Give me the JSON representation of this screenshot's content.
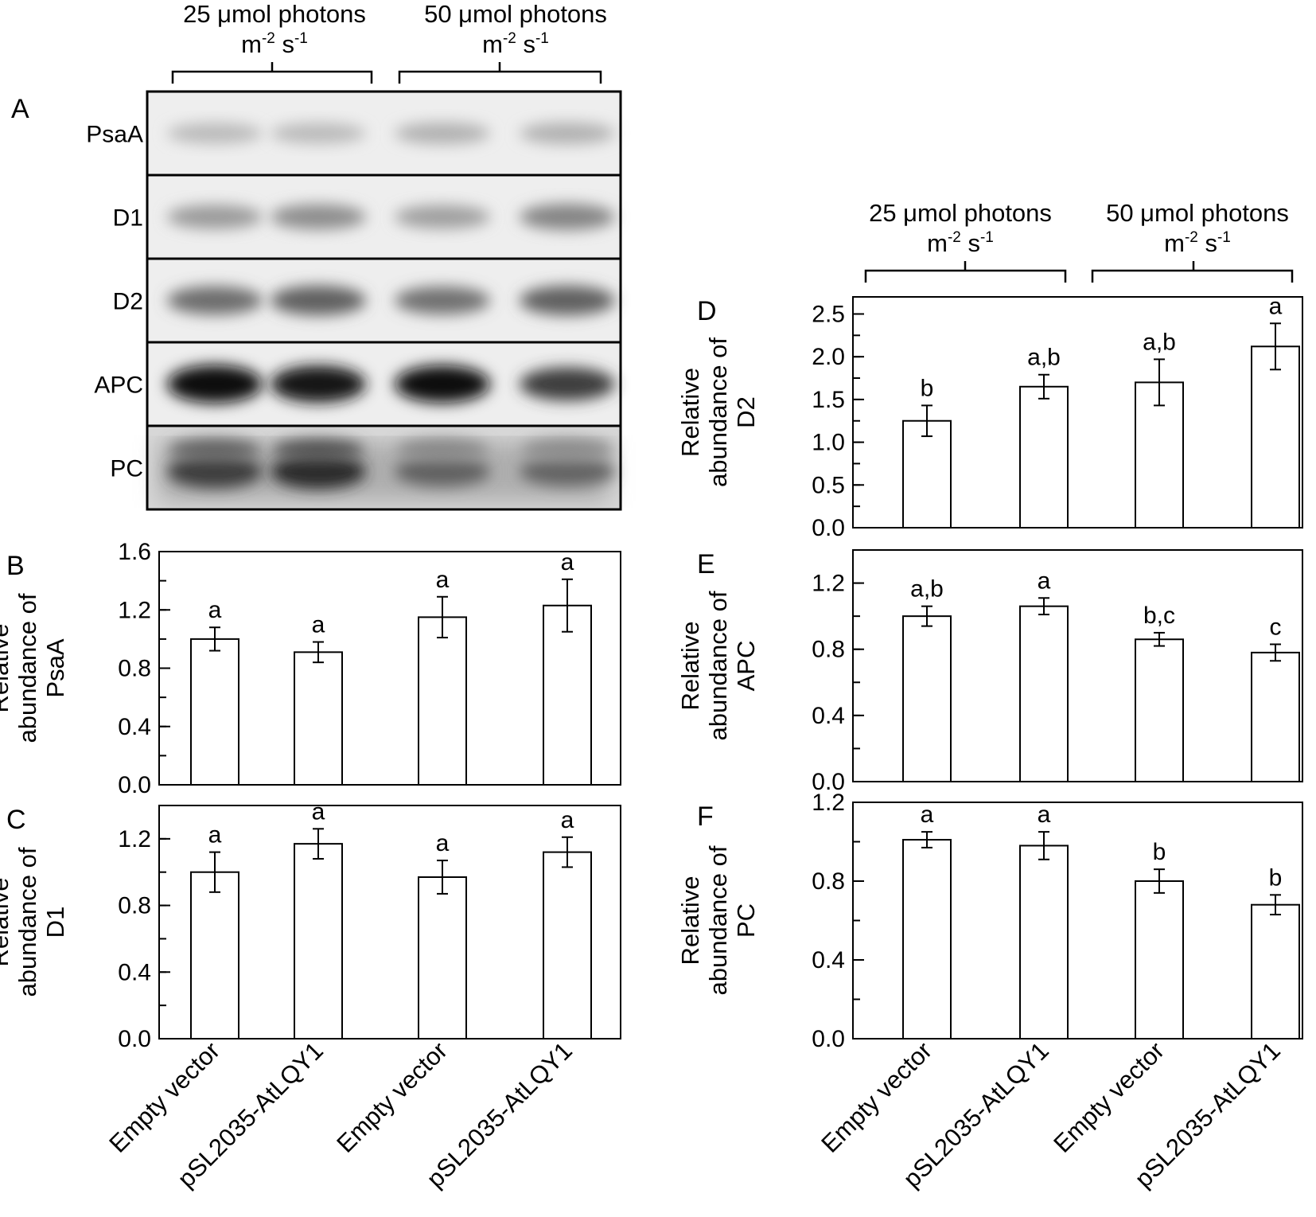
{
  "conditions": {
    "low": {
      "line1": "25 μmol photons",
      "unit_base": "m",
      "unit_exp1": "-2",
      "unit_mid": " s",
      "unit_exp2": "-1"
    },
    "high": {
      "line1": "50 μmol photons",
      "unit_base": "m",
      "unit_exp1": "-2",
      "unit_mid": " s",
      "unit_exp2": "-1"
    }
  },
  "blot": {
    "panel_label": "A",
    "lanes": [
      {
        "label": "PsaA",
        "bands": [
          0.22,
          0.22,
          0.26,
          0.26
        ],
        "split": false
      },
      {
        "label": "D1",
        "bands": [
          0.36,
          0.42,
          0.34,
          0.46
        ],
        "split": false
      },
      {
        "label": "D2",
        "bands": [
          0.56,
          0.62,
          0.54,
          0.62
        ],
        "split": false
      },
      {
        "label": "APC",
        "bands": [
          1.0,
          0.95,
          0.97,
          0.78
        ],
        "split": false
      },
      {
        "label": "PC",
        "bands": [
          0.78,
          0.85,
          0.62,
          0.6
        ],
        "split": true
      }
    ]
  },
  "categories": [
    "Empty vector",
    "pSL2035-AtLQY1",
    "Empty vector",
    "pSL2035-AtLQY1"
  ],
  "ylabel_line1": "Relative",
  "ylabel_line2": "abundance of",
  "chart_data": [
    {
      "panel": "B",
      "type": "bar",
      "protein": "PsaA",
      "categories": [
        "Empty vector",
        "pSL2035-AtLQY1",
        "Empty vector",
        "pSL2035-AtLQY1"
      ],
      "values": [
        1.0,
        0.91,
        1.15,
        1.23
      ],
      "errors": [
        0.08,
        0.07,
        0.14,
        0.18
      ],
      "letters": [
        "a",
        "a",
        "a",
        "a"
      ],
      "ylim": [
        0,
        1.6
      ],
      "ticks": [
        "0.0",
        "0.4",
        "0.8",
        "1.2",
        "1.6"
      ],
      "minor_step": 0.2
    },
    {
      "panel": "C",
      "type": "bar",
      "protein": "D1",
      "categories": [
        "Empty vector",
        "pSL2035-AtLQY1",
        "Empty vector",
        "pSL2035-AtLQY1"
      ],
      "values": [
        1.0,
        1.17,
        0.97,
        1.12
      ],
      "errors": [
        0.12,
        0.09,
        0.1,
        0.09
      ],
      "letters": [
        "a",
        "a",
        "a",
        "a"
      ],
      "ylim": [
        0,
        1.4
      ],
      "ticks": [
        "0.0",
        "0.4",
        "0.8",
        "1.2"
      ],
      "minor_step": 0.2
    },
    {
      "panel": "D",
      "type": "bar",
      "protein": "D2",
      "categories": [
        "Empty vector",
        "pSL2035-AtLQY1",
        "Empty vector",
        "pSL2035-AtLQY1"
      ],
      "values": [
        1.25,
        1.65,
        1.7,
        2.12
      ],
      "errors": [
        0.18,
        0.14,
        0.27,
        0.27
      ],
      "letters": [
        "b",
        "a,b",
        "a,b",
        "a"
      ],
      "ylim": [
        0,
        2.7
      ],
      "ticks": [
        "0.0",
        "0.5",
        "1.0",
        "1.5",
        "2.0",
        "2.5"
      ],
      "minor_step": 0.25
    },
    {
      "panel": "E",
      "type": "bar",
      "protein": "APC",
      "categories": [
        "Empty vector",
        "pSL2035-AtLQY1",
        "Empty vector",
        "pSL2035-AtLQY1"
      ],
      "values": [
        1.0,
        1.06,
        0.86,
        0.78
      ],
      "errors": [
        0.06,
        0.05,
        0.04,
        0.05
      ],
      "letters": [
        "a,b",
        "a",
        "b,c",
        "c"
      ],
      "ylim": [
        0,
        1.4
      ],
      "ticks": [
        "0.0",
        "0.4",
        "0.8",
        "1.2"
      ],
      "minor_step": 0.2
    },
    {
      "panel": "F",
      "type": "bar",
      "protein": "PC",
      "categories": [
        "Empty vector",
        "pSL2035-AtLQY1",
        "Empty vector",
        "pSL2035-AtLQY1"
      ],
      "values": [
        1.01,
        0.98,
        0.8,
        0.68
      ],
      "errors": [
        0.04,
        0.07,
        0.06,
        0.05
      ],
      "letters": [
        "a",
        "a",
        "b",
        "b"
      ],
      "ylim": [
        0,
        1.2
      ],
      "ticks": [
        "0.0",
        "0.4",
        "0.8",
        "1.2"
      ],
      "minor_step": 0.2
    }
  ]
}
